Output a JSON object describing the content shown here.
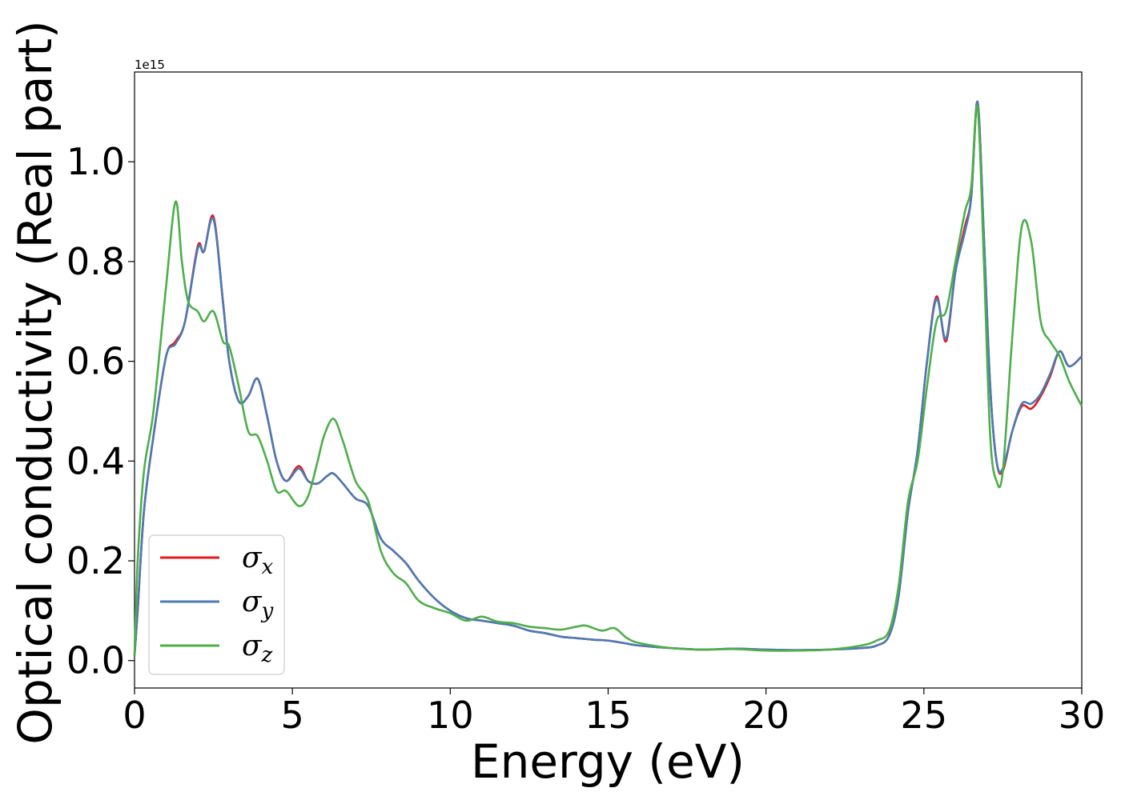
{
  "chart_data": {
    "type": "line",
    "xlabel": "Energy (eV)",
    "ylabel": "Optical conductivity (Real part)",
    "y_offset_label": "1e15",
    "xlim": [
      0,
      30
    ],
    "ylim": [
      -0.055,
      1.18
    ],
    "x_ticks": [
      0,
      5,
      10,
      15,
      20,
      25,
      30
    ],
    "x_tick_labels": [
      "0",
      "5",
      "10",
      "15",
      "20",
      "25",
      "30"
    ],
    "y_ticks": [
      0.0,
      0.2,
      0.4,
      0.6,
      0.8,
      1.0
    ],
    "y_tick_labels": [
      "0.0",
      "0.2",
      "0.4",
      "0.6",
      "0.8",
      "1.0"
    ],
    "grid": false,
    "legend_position": "lower-left",
    "series": [
      {
        "name": "σx",
        "symbol": "σ",
        "subscript": "x",
        "color": "#e41a1c",
        "x": [
          0,
          0.1,
          0.3,
          0.6,
          1.0,
          1.3,
          1.6,
          2.0,
          2.2,
          2.5,
          2.8,
          3.0,
          3.3,
          3.6,
          3.9,
          4.2,
          4.5,
          4.8,
          5.2,
          5.5,
          5.8,
          6.1,
          6.3,
          6.6,
          7.0,
          7.4,
          7.8,
          8.2,
          8.6,
          9.0,
          9.5,
          10.0,
          10.5,
          11.0,
          11.5,
          12.0,
          12.5,
          13.0,
          13.5,
          14.0,
          14.5,
          15.0,
          15.5,
          16.0,
          17.0,
          18.0,
          19.0,
          20.0,
          21.0,
          22.0,
          23.0,
          23.5,
          23.9,
          24.2,
          24.5,
          24.8,
          25.1,
          25.4,
          25.7,
          26.0,
          26.3,
          26.5,
          26.7,
          26.9,
          27.1,
          27.3,
          27.5,
          27.8,
          28.1,
          28.4,
          28.7,
          29.0,
          29.3,
          29.6,
          30.0
        ],
        "values": [
          0.01,
          0.1,
          0.3,
          0.45,
          0.61,
          0.64,
          0.68,
          0.83,
          0.82,
          0.89,
          0.72,
          0.6,
          0.52,
          0.53,
          0.565,
          0.49,
          0.4,
          0.36,
          0.39,
          0.36,
          0.355,
          0.37,
          0.375,
          0.355,
          0.325,
          0.31,
          0.245,
          0.22,
          0.195,
          0.16,
          0.125,
          0.1,
          0.085,
          0.08,
          0.075,
          0.07,
          0.06,
          0.055,
          0.048,
          0.045,
          0.042,
          0.04,
          0.035,
          0.03,
          0.025,
          0.022,
          0.024,
          0.022,
          0.021,
          0.022,
          0.025,
          0.03,
          0.05,
          0.13,
          0.3,
          0.42,
          0.6,
          0.73,
          0.64,
          0.78,
          0.87,
          0.93,
          1.12,
          0.85,
          0.55,
          0.4,
          0.38,
          0.46,
          0.51,
          0.505,
          0.53,
          0.57,
          0.62,
          0.59,
          0.61
        ]
      },
      {
        "name": "σy",
        "symbol": "σ",
        "subscript": "y",
        "color": "#4a7bb5",
        "x": [
          0,
          0.1,
          0.3,
          0.6,
          1.0,
          1.3,
          1.6,
          2.0,
          2.2,
          2.5,
          2.8,
          3.0,
          3.3,
          3.6,
          3.9,
          4.2,
          4.5,
          4.8,
          5.2,
          5.5,
          5.8,
          6.1,
          6.3,
          6.6,
          7.0,
          7.4,
          7.8,
          8.2,
          8.6,
          9.0,
          9.5,
          10.0,
          10.5,
          11.0,
          11.5,
          12.0,
          12.5,
          13.0,
          13.5,
          14.0,
          14.5,
          15.0,
          15.5,
          16.0,
          17.0,
          18.0,
          19.0,
          20.0,
          21.0,
          22.0,
          23.0,
          23.5,
          23.9,
          24.2,
          24.5,
          24.8,
          25.1,
          25.4,
          25.7,
          26.0,
          26.3,
          26.5,
          26.7,
          26.9,
          27.1,
          27.3,
          27.5,
          27.8,
          28.1,
          28.4,
          28.7,
          29.0,
          29.3,
          29.6,
          30.0
        ],
        "values": [
          0.01,
          0.1,
          0.3,
          0.45,
          0.61,
          0.635,
          0.68,
          0.825,
          0.82,
          0.885,
          0.72,
          0.6,
          0.52,
          0.53,
          0.565,
          0.49,
          0.4,
          0.36,
          0.385,
          0.36,
          0.355,
          0.37,
          0.375,
          0.355,
          0.325,
          0.31,
          0.245,
          0.22,
          0.195,
          0.16,
          0.125,
          0.1,
          0.085,
          0.08,
          0.075,
          0.07,
          0.06,
          0.055,
          0.048,
          0.045,
          0.042,
          0.04,
          0.035,
          0.03,
          0.025,
          0.022,
          0.024,
          0.022,
          0.021,
          0.022,
          0.025,
          0.03,
          0.05,
          0.13,
          0.3,
          0.42,
          0.6,
          0.725,
          0.645,
          0.78,
          0.86,
          0.93,
          1.12,
          0.85,
          0.55,
          0.4,
          0.385,
          0.46,
          0.515,
          0.515,
          0.535,
          0.575,
          0.62,
          0.59,
          0.61
        ]
      },
      {
        "name": "σz",
        "symbol": "σ",
        "subscript": "z",
        "color": "#4daf4a",
        "x": [
          0,
          0.1,
          0.3,
          0.6,
          1.0,
          1.3,
          1.5,
          1.7,
          2.0,
          2.2,
          2.5,
          2.8,
          3.0,
          3.3,
          3.6,
          3.9,
          4.2,
          4.5,
          4.8,
          5.2,
          5.5,
          5.8,
          6.0,
          6.3,
          6.6,
          7.0,
          7.4,
          7.8,
          8.2,
          8.6,
          9.0,
          9.5,
          10.0,
          10.5,
          11.0,
          11.5,
          12.0,
          12.5,
          13.0,
          13.5,
          14.0,
          14.3,
          14.8,
          15.2,
          15.6,
          16.0,
          17.0,
          18.0,
          19.0,
          20.0,
          21.0,
          22.0,
          23.0,
          23.5,
          23.9,
          24.2,
          24.5,
          24.8,
          25.1,
          25.4,
          25.7,
          26.0,
          26.3,
          26.5,
          26.7,
          26.9,
          27.1,
          27.3,
          27.5,
          27.8,
          28.1,
          28.4,
          28.7,
          29.0,
          29.3,
          29.6,
          30.0
        ],
        "values": [
          0.01,
          0.2,
          0.38,
          0.5,
          0.75,
          0.92,
          0.8,
          0.72,
          0.7,
          0.68,
          0.7,
          0.64,
          0.63,
          0.55,
          0.46,
          0.45,
          0.4,
          0.34,
          0.34,
          0.31,
          0.33,
          0.4,
          0.45,
          0.485,
          0.44,
          0.36,
          0.32,
          0.22,
          0.175,
          0.155,
          0.12,
          0.105,
          0.095,
          0.08,
          0.088,
          0.078,
          0.075,
          0.068,
          0.065,
          0.062,
          0.068,
          0.07,
          0.06,
          0.065,
          0.045,
          0.035,
          0.025,
          0.022,
          0.023,
          0.02,
          0.02,
          0.022,
          0.03,
          0.04,
          0.06,
          0.15,
          0.32,
          0.4,
          0.55,
          0.68,
          0.7,
          0.8,
          0.9,
          0.95,
          1.11,
          0.8,
          0.45,
          0.36,
          0.38,
          0.65,
          0.87,
          0.84,
          0.68,
          0.64,
          0.61,
          0.56,
          0.51
        ]
      }
    ]
  }
}
